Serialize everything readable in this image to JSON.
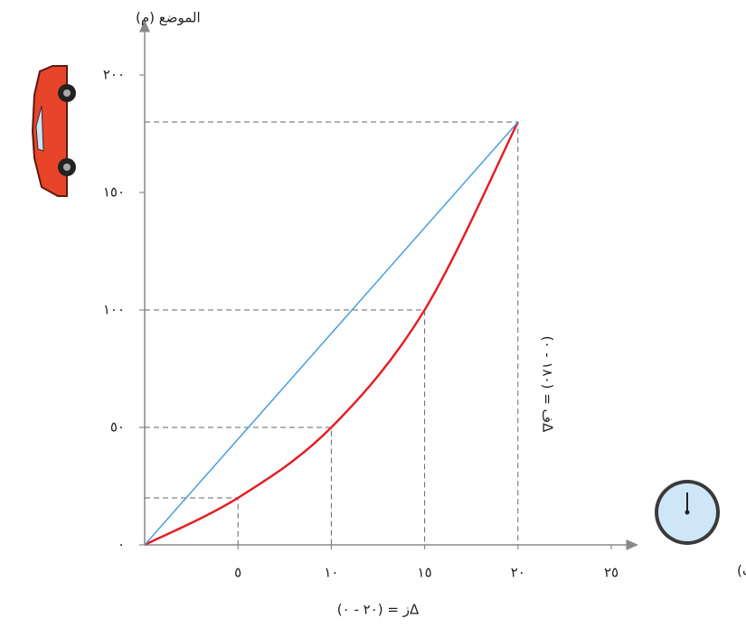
{
  "chart_data": {
    "type": "line",
    "y_axis_label": "الموضع (م)",
    "x_axis_label": "الزمن(ث)",
    "x": [
      0,
      5,
      10,
      15,
      20
    ],
    "series": [
      {
        "color": "#e41e26",
        "values": [
          0,
          20,
          50,
          100,
          180
        ],
        "smooth": true
      },
      {
        "color": "#4a9fdc",
        "x": [
          0,
          20
        ],
        "values": [
          0,
          180
        ]
      }
    ],
    "xlim": [
      0,
      25
    ],
    "ylim": [
      0,
      200
    ],
    "xticks": [
      {
        "value": 5,
        "label": "٥"
      },
      {
        "value": 10,
        "label": "١٠"
      },
      {
        "value": 15,
        "label": "١٥"
      },
      {
        "value": 20,
        "label": "٢٠"
      },
      {
        "value": 25,
        "label": "٢٥"
      }
    ],
    "yticks": [
      {
        "value": 0,
        "label": "٠"
      },
      {
        "value": 50,
        "label": "٥٠"
      },
      {
        "value": 100,
        "label": "١٠٠"
      },
      {
        "value": 150,
        "label": "١٥٠"
      },
      {
        "value": 200,
        "label": "٢٠٠"
      }
    ],
    "annotations": [
      "Δز = (٢٠ - ٠)",
      "Δف = (١٨٠ - ٠)"
    ]
  }
}
